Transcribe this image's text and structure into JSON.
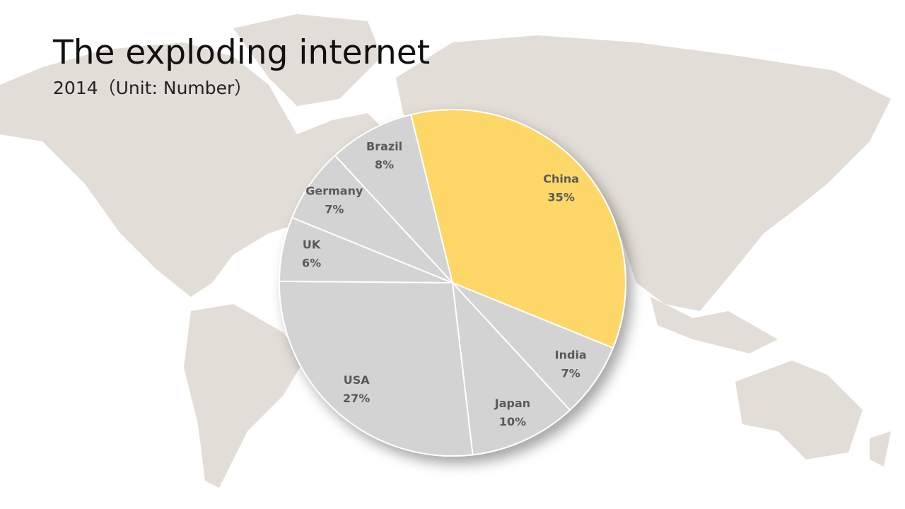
{
  "chart_data": {
    "type": "pie",
    "title": "The exploding internet",
    "subtitle": "2014（Unit: Number）",
    "categories": [
      "China",
      "India",
      "Japan",
      "USA",
      "UK",
      "Germany",
      "Brazil"
    ],
    "values": [
      35,
      7,
      10,
      27,
      6,
      7,
      8
    ],
    "value_labels": [
      "35%",
      "7%",
      "10%",
      "27%",
      "6%",
      "7%",
      "8%"
    ],
    "colors": [
      "#fdd868",
      "#d3d3d3",
      "#d3d3d3",
      "#d3d3d3",
      "#d3d3d3",
      "#d3d3d3",
      "#d3d3d3"
    ]
  }
}
